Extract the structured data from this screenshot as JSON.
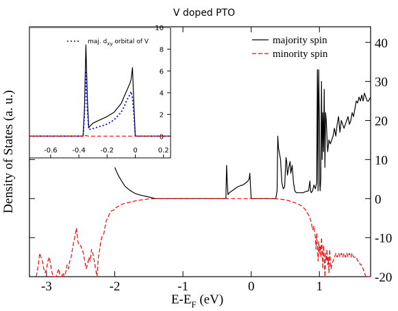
{
  "chart_data": [
    {
      "type": "line",
      "title": "V doped PTO",
      "xlabel_main": "E-E",
      "xlabel_sub": "F",
      "xlabel_unit": " (eV)",
      "ylabel": "Density of States (a. u.)",
      "xlim": [
        -3.25,
        1.75
      ],
      "ylim": [
        -20,
        44
      ],
      "xticks": [
        -3,
        -2,
        -1,
        0,
        1
      ],
      "yticks": [
        -20,
        -10,
        0,
        10,
        20,
        30,
        40
      ],
      "xtick_labels": [
        "-3",
        "-2",
        "-1",
        "0",
        "1"
      ],
      "ytick_labels": [
        "-20",
        "-10",
        "0",
        "10",
        "20",
        "30",
        "40"
      ],
      "grid": false,
      "legend_position": "top-right",
      "series": [
        {
          "name": "majority spin",
          "color": "#000000",
          "dash": "solid",
          "x": [
            -2.0,
            -1.95,
            -1.9,
            -1.85,
            -1.8,
            -1.75,
            -1.7,
            -1.65,
            -1.6,
            -1.5,
            -1.4,
            -1.2,
            -1.0,
            -0.8,
            -0.6,
            -0.4,
            -0.37,
            -0.36,
            -0.35,
            -0.34,
            -0.32,
            -0.28,
            -0.24,
            -0.2,
            -0.16,
            -0.12,
            -0.08,
            -0.05,
            -0.03,
            -0.02,
            -0.01,
            0.0,
            0.02,
            0.1,
            0.2,
            0.3,
            0.36,
            0.38,
            0.39,
            0.4,
            0.41,
            0.43,
            0.45,
            0.47,
            0.49,
            0.5,
            0.51,
            0.52,
            0.53,
            0.55,
            0.57,
            0.58,
            0.6,
            0.62,
            0.64,
            0.66,
            0.68,
            0.7,
            0.72,
            0.74,
            0.76,
            0.8,
            0.84,
            0.86,
            0.87,
            0.88,
            0.9,
            0.92,
            0.94,
            0.96,
            0.97,
            0.98,
            0.985,
            0.99,
            0.995,
            1.0,
            1.005,
            1.01,
            1.02,
            1.03,
            1.04,
            1.05,
            1.06,
            1.07,
            1.08,
            1.09,
            1.1,
            1.12,
            1.14,
            1.16,
            1.18,
            1.2,
            1.22,
            1.24,
            1.26,
            1.28,
            1.3,
            1.32,
            1.34,
            1.36,
            1.38,
            1.4,
            1.42,
            1.44,
            1.46,
            1.48,
            1.5,
            1.52,
            1.54,
            1.56,
            1.58,
            1.6,
            1.62,
            1.64,
            1.66,
            1.68,
            1.7,
            1.72,
            1.75
          ],
          "y": [
            8.0,
            6.0,
            4.5,
            3.2,
            2.4,
            1.8,
            1.3,
            1.0,
            0.8,
            0.4,
            0.0,
            0.0,
            0.0,
            0.0,
            0.0,
            0.0,
            0.0,
            8.5,
            4.0,
            1.0,
            1.5,
            2.0,
            2.5,
            3.0,
            3.3,
            3.5,
            4.0,
            4.5,
            5.0,
            6.5,
            3.0,
            0.0,
            0.0,
            0.0,
            0.0,
            0.0,
            0.0,
            2.0,
            16.0,
            13.0,
            12.0,
            10.0,
            4.0,
            2.5,
            3.0,
            7.0,
            10.5,
            9.5,
            6.0,
            8.0,
            9.5,
            6.5,
            8.5,
            4.0,
            2.0,
            1.5,
            1.5,
            1.5,
            1.5,
            1.5,
            1.5,
            1.8,
            2.0,
            4.5,
            2.0,
            1.5,
            2.0,
            3.5,
            2.5,
            4.0,
            33.0,
            2.0,
            27.0,
            33.0,
            25.0,
            20.0,
            3.5,
            2.0,
            5.0,
            30.0,
            10.0,
            22.0,
            12.0,
            28.0,
            8.0,
            22.0,
            20.0,
            12.0,
            15.0,
            14.0,
            15.0,
            16.0,
            18.0,
            16.0,
            19.0,
            21.0,
            17.0,
            20.0,
            19.0,
            18.0,
            19.0,
            20.0,
            21.0,
            19.0,
            20.0,
            22.0,
            21.0,
            23.0,
            25.0,
            24.5,
            26.0,
            25.0,
            26.5,
            25.0,
            27.0,
            26.0,
            25.0,
            25.0,
            26.0
          ]
        },
        {
          "name": "minority spin",
          "color": "#ff0000",
          "dash": "6,3",
          "x": [
            -3.15,
            -3.12,
            -3.1,
            -3.08,
            -3.06,
            -3.04,
            -3.02,
            -3.0,
            -2.98,
            -2.96,
            -2.94,
            -2.92,
            -2.9,
            -2.88,
            -2.86,
            -2.84,
            -2.82,
            -2.8,
            -2.78,
            -2.76,
            -2.74,
            -2.72,
            -2.7,
            -2.68,
            -2.66,
            -2.64,
            -2.62,
            -2.6,
            -2.58,
            -2.56,
            -2.54,
            -2.52,
            -2.5,
            -2.48,
            -2.46,
            -2.44,
            -2.42,
            -2.4,
            -2.38,
            -2.36,
            -2.34,
            -2.32,
            -2.3,
            -2.28,
            -2.26,
            -2.24,
            -2.22,
            -2.2,
            -2.18,
            -2.16,
            -2.14,
            -2.12,
            -2.1,
            -2.08,
            -2.06,
            -2.04,
            -2.02,
            -2.0,
            -1.95,
            -1.9,
            -1.85,
            -1.8,
            -1.7,
            -1.6,
            -1.5,
            -1.4,
            -1.2,
            -1.0,
            -0.8,
            -0.6,
            -0.4,
            -0.2,
            0.0,
            0.2,
            0.4,
            0.5,
            0.6,
            0.7,
            0.75,
            0.8,
            0.85,
            0.88,
            0.9,
            0.92,
            0.94,
            0.95,
            0.96,
            0.97,
            0.98,
            0.99,
            1.0,
            1.01,
            1.02,
            1.03,
            1.04,
            1.05,
            1.06,
            1.07,
            1.08,
            1.09,
            1.1,
            1.11,
            1.12,
            1.13,
            1.14,
            1.15,
            1.16,
            1.17,
            1.18,
            1.2,
            1.22,
            1.24,
            1.26,
            1.28,
            1.3,
            1.32,
            1.34,
            1.36,
            1.38,
            1.4,
            1.42,
            1.44,
            1.46,
            1.48,
            1.5,
            1.52,
            1.54,
            1.56,
            1.58,
            1.6,
            1.62,
            1.64,
            1.66,
            1.68,
            1.7,
            1.72,
            1.75
          ],
          "y": [
            -21,
            -17,
            -14,
            -15,
            -16,
            -18,
            -19,
            -18,
            -16,
            -15,
            -17,
            -19,
            -21,
            -20,
            -20,
            -19,
            -18,
            -20,
            -21,
            -19,
            -20,
            -19,
            -17,
            -18,
            -16,
            -15,
            -13,
            -11,
            -9.5,
            -7.5,
            -11,
            -12,
            -12,
            -13,
            -14,
            -16,
            -18,
            -17,
            -15,
            -16,
            -13,
            -14,
            -16,
            -18,
            -20,
            -15,
            -13,
            -10.5,
            -9.5,
            -9,
            -7,
            -5.5,
            -5,
            -4,
            -3.5,
            -3,
            -3,
            -2.5,
            -2,
            -1.5,
            -1.2,
            -1.0,
            -0.6,
            -0.3,
            -0.1,
            0.0,
            0.0,
            0.0,
            0.0,
            0.0,
            0.0,
            0.0,
            0.0,
            0.0,
            -0.1,
            -0.3,
            -0.8,
            -1.5,
            -2.0,
            -3.0,
            -4.5,
            -6.0,
            -8.0,
            -7.0,
            -10.0,
            -13.0,
            -9.0,
            -12.0,
            -16.0,
            -11.0,
            -14.0,
            -12.0,
            -15.0,
            -10.0,
            -13.0,
            -18.0,
            -12.0,
            -15.0,
            -20.0,
            -14.0,
            -16.0,
            -13.0,
            -17.0,
            -15.0,
            -19.0,
            -13.0,
            -16.0,
            -18.0,
            -17.0,
            -16.0,
            -15.0,
            -14.0,
            -15.0,
            -14.0,
            -15.0,
            -14.0,
            -15.0,
            -14.0,
            -15.0,
            -14.0,
            -15.0,
            -14.0,
            -15.0,
            -14.0,
            -15.0,
            -15.0,
            -15.0,
            -16.0,
            -16.0,
            -17.0,
            -17.0,
            -18.0,
            -19.0,
            -20.0,
            -21.0,
            -22.0,
            -23.0
          ]
        }
      ]
    },
    {
      "type": "line",
      "xlim": [
        -0.75,
        0.25
      ],
      "ylim": [
        -2,
        10
      ],
      "xticks": [
        -0.6,
        -0.4,
        -0.2,
        0,
        0.2
      ],
      "yticks": [
        0,
        2,
        4,
        6,
        8,
        10
      ],
      "xtick_labels": [
        "-0.6",
        "-0.4",
        "-0.2",
        "0",
        "0.2"
      ],
      "ytick_labels": [
        "0",
        "2",
        "4",
        "6",
        "8",
        "10"
      ],
      "grid": false,
      "legend_position": "top-right",
      "legend_label_main": "maj. d",
      "legend_label_sub": "xy",
      "legend_label_rest": " orbital of V",
      "series": [
        {
          "color": "#000000",
          "dash": "solid",
          "x": [
            -0.75,
            -0.37,
            -0.36,
            -0.35,
            -0.34,
            -0.33,
            -0.3,
            -0.25,
            -0.2,
            -0.15,
            -0.1,
            -0.08,
            -0.06,
            -0.04,
            -0.03,
            -0.02,
            -0.01,
            0.0,
            0.02,
            0.25
          ],
          "y": [
            0,
            0,
            2.5,
            8.4,
            3.5,
            0.8,
            1.2,
            1.5,
            1.8,
            2.2,
            3.0,
            3.6,
            4.2,
            4.8,
            5.2,
            6.3,
            3.0,
            0.0,
            0.0,
            0.0
          ]
        },
        {
          "name": "maj. dxy orbital of V",
          "color": "#0000ff",
          "dash": "2,3",
          "x": [
            -0.75,
            -0.37,
            -0.36,
            -0.35,
            -0.34,
            -0.33,
            -0.3,
            -0.25,
            -0.2,
            -0.15,
            -0.1,
            -0.08,
            -0.06,
            -0.04,
            -0.03,
            -0.02,
            -0.01,
            0.0,
            0.02,
            0.25
          ],
          "y": [
            0,
            0,
            2.0,
            6.0,
            2.5,
            0.6,
            0.7,
            0.9,
            1.1,
            1.5,
            2.2,
            2.7,
            3.3,
            3.8,
            4.1,
            3.5,
            2.0,
            0.0,
            0.0,
            0.0
          ]
        },
        {
          "color": "#ff0000",
          "dash": "6,3",
          "x": [
            -0.75,
            -0.37,
            -0.35,
            -0.33,
            0.25
          ],
          "y": [
            0,
            0,
            0.05,
            0,
            0
          ]
        }
      ]
    }
  ]
}
